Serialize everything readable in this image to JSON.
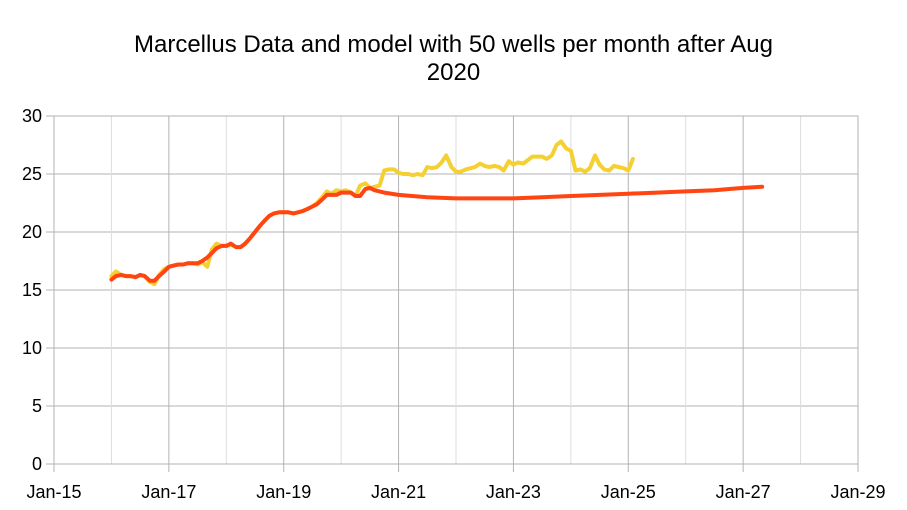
{
  "chart_data": {
    "type": "line",
    "title_line1": "Marcellus Data and model with 50 wells per month after Aug",
    "title_line2": "2020",
    "xlabel": "",
    "ylabel": "",
    "grid": true,
    "legend": "none",
    "xlim": [
      2015.0,
      2029.0
    ],
    "ylim": [
      0,
      30
    ],
    "x_ticks": [
      "Jan-15",
      "Jan-17",
      "Jan-19",
      "Jan-21",
      "Jan-23",
      "Jan-25",
      "Jan-27",
      "Jan-29"
    ],
    "y_ticks": [
      "0",
      "5",
      "10",
      "15",
      "20",
      "25",
      "30"
    ],
    "series": [
      {
        "color": "#f5d033",
        "points": [
          [
            2016.0,
            16.2
          ],
          [
            2016.08,
            16.6
          ],
          [
            2016.17,
            16.3
          ],
          [
            2016.25,
            16.2
          ],
          [
            2016.33,
            16.2
          ],
          [
            2016.42,
            16.1
          ],
          [
            2016.5,
            16.3
          ],
          [
            2016.58,
            16.2
          ],
          [
            2016.67,
            15.7
          ],
          [
            2016.75,
            15.5
          ],
          [
            2016.83,
            16.3
          ],
          [
            2016.92,
            16.8
          ],
          [
            2017.0,
            17.0
          ],
          [
            2017.08,
            17.1
          ],
          [
            2017.17,
            17.2
          ],
          [
            2017.25,
            17.2
          ],
          [
            2017.33,
            17.3
          ],
          [
            2017.42,
            17.3
          ],
          [
            2017.5,
            17.2
          ],
          [
            2017.58,
            17.4
          ],
          [
            2017.67,
            17.0
          ],
          [
            2017.75,
            18.5
          ],
          [
            2017.83,
            19.0
          ],
          [
            2017.92,
            18.8
          ],
          [
            2018.0,
            18.8
          ],
          [
            2018.08,
            18.9
          ],
          [
            2018.17,
            18.7
          ],
          [
            2018.25,
            18.7
          ],
          [
            2018.33,
            19.0
          ],
          [
            2018.42,
            19.5
          ],
          [
            2018.5,
            20.0
          ],
          [
            2018.58,
            20.5
          ],
          [
            2018.67,
            21.0
          ],
          [
            2018.75,
            21.4
          ],
          [
            2018.83,
            21.6
          ],
          [
            2018.92,
            21.7
          ],
          [
            2019.0,
            21.7
          ],
          [
            2019.08,
            21.7
          ],
          [
            2019.17,
            21.6
          ],
          [
            2019.25,
            21.7
          ],
          [
            2019.33,
            21.8
          ],
          [
            2019.42,
            22.0
          ],
          [
            2019.5,
            22.2
          ],
          [
            2019.58,
            22.5
          ],
          [
            2019.67,
            23.0
          ],
          [
            2019.75,
            23.5
          ],
          [
            2019.83,
            23.3
          ],
          [
            2019.92,
            23.6
          ],
          [
            2020.0,
            23.5
          ],
          [
            2020.08,
            23.6
          ],
          [
            2020.17,
            23.4
          ],
          [
            2020.25,
            23.1
          ],
          [
            2020.33,
            24.0
          ],
          [
            2020.42,
            24.2
          ],
          [
            2020.5,
            23.8
          ],
          [
            2020.58,
            23.9
          ],
          [
            2020.67,
            24.0
          ],
          [
            2020.75,
            25.3
          ],
          [
            2020.83,
            25.4
          ],
          [
            2020.92,
            25.4
          ],
          [
            2021.0,
            25.1
          ],
          [
            2021.08,
            25.0
          ],
          [
            2021.17,
            25.0
          ],
          [
            2021.25,
            24.9
          ],
          [
            2021.33,
            25.0
          ],
          [
            2021.42,
            24.9
          ],
          [
            2021.5,
            25.6
          ],
          [
            2021.58,
            25.5
          ],
          [
            2021.67,
            25.6
          ],
          [
            2021.75,
            26.0
          ],
          [
            2021.83,
            26.6
          ],
          [
            2021.92,
            25.6
          ],
          [
            2022.0,
            25.2
          ],
          [
            2022.08,
            25.2
          ],
          [
            2022.17,
            25.4
          ],
          [
            2022.25,
            25.5
          ],
          [
            2022.33,
            25.6
          ],
          [
            2022.42,
            25.9
          ],
          [
            2022.5,
            25.7
          ],
          [
            2022.58,
            25.6
          ],
          [
            2022.67,
            25.7
          ],
          [
            2022.75,
            25.6
          ],
          [
            2022.83,
            25.3
          ],
          [
            2022.92,
            26.1
          ],
          [
            2023.0,
            25.8
          ],
          [
            2023.08,
            26.0
          ],
          [
            2023.17,
            25.9
          ],
          [
            2023.25,
            26.2
          ],
          [
            2023.33,
            26.5
          ],
          [
            2023.42,
            26.5
          ],
          [
            2023.5,
            26.5
          ],
          [
            2023.58,
            26.3
          ],
          [
            2023.67,
            26.6
          ],
          [
            2023.75,
            27.5
          ],
          [
            2023.83,
            27.8
          ],
          [
            2023.92,
            27.2
          ],
          [
            2024.0,
            27.0
          ],
          [
            2024.08,
            25.3
          ],
          [
            2024.17,
            25.4
          ],
          [
            2024.25,
            25.2
          ],
          [
            2024.33,
            25.5
          ],
          [
            2024.42,
            26.6
          ],
          [
            2024.5,
            25.8
          ],
          [
            2024.58,
            25.4
          ],
          [
            2024.67,
            25.3
          ],
          [
            2024.75,
            25.7
          ],
          [
            2024.83,
            25.6
          ],
          [
            2024.92,
            25.5
          ],
          [
            2025.0,
            25.3
          ],
          [
            2025.08,
            26.3
          ]
        ]
      },
      {
        "color": "#ff4512",
        "points": [
          [
            2016.0,
            15.9
          ],
          [
            2016.08,
            16.2
          ],
          [
            2016.17,
            16.3
          ],
          [
            2016.25,
            16.2
          ],
          [
            2016.33,
            16.2
          ],
          [
            2016.42,
            16.1
          ],
          [
            2016.5,
            16.3
          ],
          [
            2016.58,
            16.2
          ],
          [
            2016.67,
            15.8
          ],
          [
            2016.75,
            15.8
          ],
          [
            2016.83,
            16.2
          ],
          [
            2016.92,
            16.6
          ],
          [
            2017.0,
            17.0
          ],
          [
            2017.08,
            17.1
          ],
          [
            2017.17,
            17.2
          ],
          [
            2017.25,
            17.2
          ],
          [
            2017.33,
            17.3
          ],
          [
            2017.42,
            17.3
          ],
          [
            2017.5,
            17.3
          ],
          [
            2017.58,
            17.5
          ],
          [
            2017.67,
            17.8
          ],
          [
            2017.75,
            18.2
          ],
          [
            2017.83,
            18.6
          ],
          [
            2017.92,
            18.8
          ],
          [
            2018.0,
            18.8
          ],
          [
            2018.08,
            19.0
          ],
          [
            2018.17,
            18.7
          ],
          [
            2018.25,
            18.7
          ],
          [
            2018.33,
            19.0
          ],
          [
            2018.42,
            19.5
          ],
          [
            2018.5,
            20.0
          ],
          [
            2018.58,
            20.5
          ],
          [
            2018.67,
            21.0
          ],
          [
            2018.75,
            21.4
          ],
          [
            2018.83,
            21.6
          ],
          [
            2018.92,
            21.7
          ],
          [
            2019.0,
            21.7
          ],
          [
            2019.08,
            21.7
          ],
          [
            2019.17,
            21.6
          ],
          [
            2019.25,
            21.7
          ],
          [
            2019.33,
            21.8
          ],
          [
            2019.42,
            22.0
          ],
          [
            2019.5,
            22.2
          ],
          [
            2019.58,
            22.4
          ],
          [
            2019.67,
            22.8
          ],
          [
            2019.75,
            23.2
          ],
          [
            2019.83,
            23.2
          ],
          [
            2019.92,
            23.2
          ],
          [
            2020.0,
            23.4
          ],
          [
            2020.08,
            23.4
          ],
          [
            2020.17,
            23.4
          ],
          [
            2020.25,
            23.1
          ],
          [
            2020.33,
            23.1
          ],
          [
            2020.42,
            23.7
          ],
          [
            2020.5,
            23.8
          ],
          [
            2020.58,
            23.6
          ],
          [
            2020.75,
            23.4
          ],
          [
            2021.0,
            23.2
          ],
          [
            2021.5,
            23.0
          ],
          [
            2022.0,
            22.9
          ],
          [
            2022.5,
            22.9
          ],
          [
            2023.0,
            22.9
          ],
          [
            2023.5,
            23.0
          ],
          [
            2024.0,
            23.1
          ],
          [
            2024.5,
            23.2
          ],
          [
            2025.0,
            23.3
          ],
          [
            2025.5,
            23.4
          ],
          [
            2026.0,
            23.5
          ],
          [
            2026.5,
            23.6
          ],
          [
            2027.0,
            23.8
          ],
          [
            2027.33,
            23.9
          ]
        ]
      }
    ]
  }
}
